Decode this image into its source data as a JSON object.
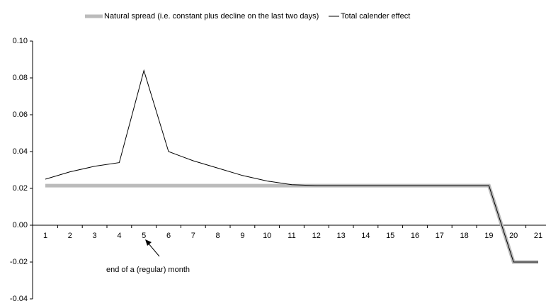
{
  "chart_data": {
    "type": "line",
    "categories": [
      "1",
      "2",
      "3",
      "4",
      "5",
      "6",
      "7",
      "8",
      "9",
      "10",
      "11",
      "12",
      "13",
      "14",
      "15",
      "16",
      "17",
      "18",
      "19",
      "20",
      "21"
    ],
    "series": [
      {
        "name": "Natural spread (i.e. constant plus decline on the last two days)",
        "color": "#bbbbbb",
        "values": [
          0.0215,
          0.0215,
          0.0215,
          0.0215,
          0.0215,
          0.0215,
          0.0215,
          0.0215,
          0.0215,
          0.0215,
          0.0215,
          0.0215,
          0.0215,
          0.0215,
          0.0215,
          0.0215,
          0.0215,
          0.0215,
          0.0215,
          -0.02,
          -0.02
        ]
      },
      {
        "name": "Total calender effect",
        "color": "#000000",
        "values": [
          0.025,
          0.029,
          0.032,
          0.034,
          0.084,
          0.04,
          0.035,
          0.031,
          0.027,
          0.024,
          0.022,
          0.0215,
          0.0215,
          0.0215,
          0.0215,
          0.0215,
          0.0215,
          0.0215,
          0.0215,
          -0.02,
          -0.02
        ]
      }
    ],
    "ylim": [
      -0.04,
      0.1
    ],
    "yticks": [
      {
        "value": -0.04,
        "label": "-0.04"
      },
      {
        "value": -0.02,
        "label": "-0.02"
      },
      {
        "value": 0,
        "label": "0.00"
      },
      {
        "value": 0.02,
        "label": "0.02"
      },
      {
        "value": 0.04,
        "label": "0.04"
      },
      {
        "value": 0.06,
        "label": "0.06"
      },
      {
        "value": 0.08,
        "label": "0.08"
      },
      {
        "value": 0.1,
        "label": "0.10"
      }
    ],
    "annotation": "end of a (regular) month",
    "legend": "top"
  }
}
